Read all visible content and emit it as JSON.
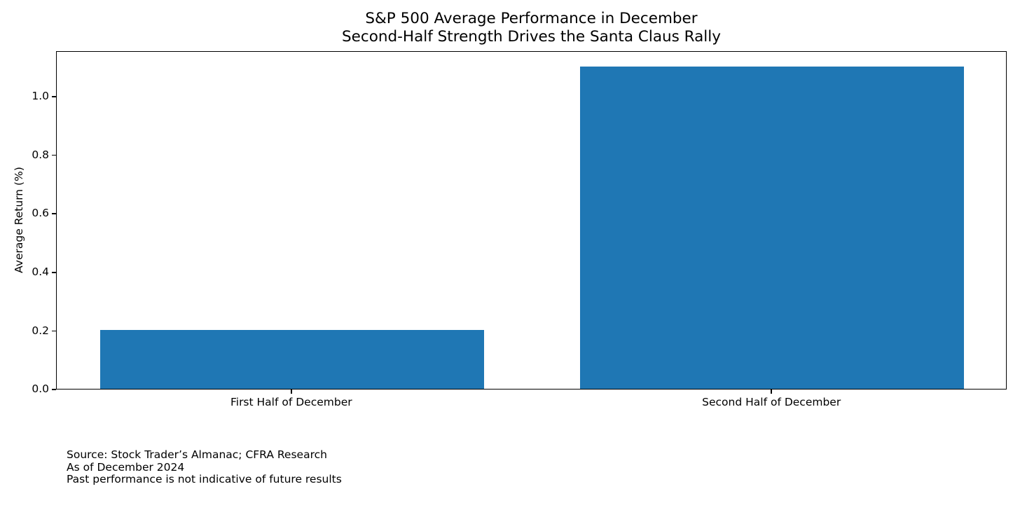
{
  "title": {
    "line1": "S&P 500 Average Performance in December",
    "line2": "Second-Half Strength Drives the Santa Claus Rally"
  },
  "chart_data": {
    "type": "bar",
    "categories": [
      "First Half of December",
      "Second Half of December"
    ],
    "values": [
      0.2,
      1.1
    ],
    "title": "S&P 500 Average Performance in December\nSecond-Half Strength Drives the Santa Claus Rally",
    "xlabel": "",
    "ylabel": "Average Return (%)",
    "ylim": [
      0,
      1.155
    ],
    "yticks": [
      "0.0",
      "0.2",
      "0.4",
      "0.6",
      "0.8",
      "1.0"
    ],
    "bar_width": 0.8,
    "bar_color": "#1f77b4",
    "grid": false,
    "legend_position": "none"
  },
  "footnotes": {
    "line1": "Source: Stock Trader’s Almanac; CFRA Research",
    "line2": "As of December 2024",
    "line3": "Past performance is not indicative of future results"
  }
}
